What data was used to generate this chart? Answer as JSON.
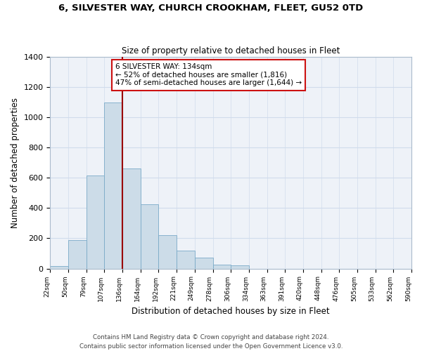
{
  "title": "6, SILVESTER WAY, CHURCH CROOKHAM, FLEET, GU52 0TD",
  "subtitle": "Size of property relative to detached houses in Fleet",
  "xlabel": "Distribution of detached houses by size in Fleet",
  "ylabel": "Number of detached properties",
  "bar_color": "#ccdce8",
  "bar_edge_color": "#7aaac8",
  "bar_heights": [
    15,
    190,
    615,
    1100,
    660,
    425,
    220,
    120,
    70,
    28,
    22,
    0,
    0,
    0,
    0,
    0,
    0,
    0,
    0,
    0
  ],
  "tick_labels": [
    "22sqm",
    "50sqm",
    "79sqm",
    "107sqm",
    "136sqm",
    "164sqm",
    "192sqm",
    "221sqm",
    "249sqm",
    "278sqm",
    "306sqm",
    "334sqm",
    "363sqm",
    "391sqm",
    "420sqm",
    "448sqm",
    "476sqm",
    "505sqm",
    "533sqm",
    "562sqm",
    "590sqm"
  ],
  "ylim": [
    0,
    1400
  ],
  "yticks": [
    0,
    200,
    400,
    600,
    800,
    1000,
    1200,
    1400
  ],
  "vline_pos": 4,
  "vline_color": "#990000",
  "annotation_title": "6 SILVESTER WAY: 134sqm",
  "annotation_line1": "← 52% of detached houses are smaller (1,816)",
  "annotation_line2": "47% of semi-detached houses are larger (1,644) →",
  "footer1": "Contains HM Land Registry data © Crown copyright and database right 2024.",
  "footer2": "Contains public sector information licensed under the Open Government Licence v3.0.",
  "grid_color": "#d0dcec",
  "background_color": "#eef2f8"
}
